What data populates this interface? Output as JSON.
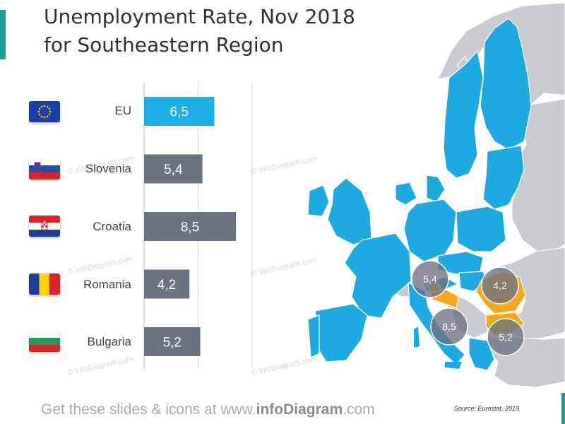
{
  "title": {
    "line1": "Unemployment Rate, Nov 2018",
    "line2": "for Southeastern Region"
  },
  "colors": {
    "eu_bar": "#1eaee6",
    "country_bar": "#6b7282",
    "map_eu": "#1ea9e1",
    "map_other": "#c8cbcf",
    "map_highlight": "#f7a71d",
    "accent": "#1a9e97"
  },
  "flags": [
    "eu-flag-icon",
    "slovenia-flag-icon",
    "croatia-flag-icon",
    "romania-flag-icon",
    "bulgaria-flag-icon"
  ],
  "chart_data": {
    "type": "bar",
    "orientation": "horizontal",
    "categories": [
      "EU",
      "Slovenia",
      "Croatia",
      "Romania",
      "Bulgaria"
    ],
    "values": [
      6.5,
      5.4,
      8.5,
      4.2,
      5.2
    ],
    "value_labels": [
      "6,5",
      "5,4",
      "8,5",
      "4,2",
      "5,2"
    ],
    "title": "Unemployment Rate, Nov 2018",
    "xlim": [
      0,
      20
    ],
    "grid": true
  },
  "map_labels": [
    {
      "country": "Slovenia",
      "label": "5,4"
    },
    {
      "country": "Romania",
      "label": "4,2"
    },
    {
      "country": "Croatia",
      "label": "8,5"
    },
    {
      "country": "Bulgaria",
      "label": "5,2"
    }
  ],
  "watermark": "© infoDiagram.com",
  "footer": {
    "prefix": "Get these slides & icons at www.",
    "brand": "infoDiagram",
    "suffix": ".com"
  },
  "source": "Source: Eurostat, 2019"
}
